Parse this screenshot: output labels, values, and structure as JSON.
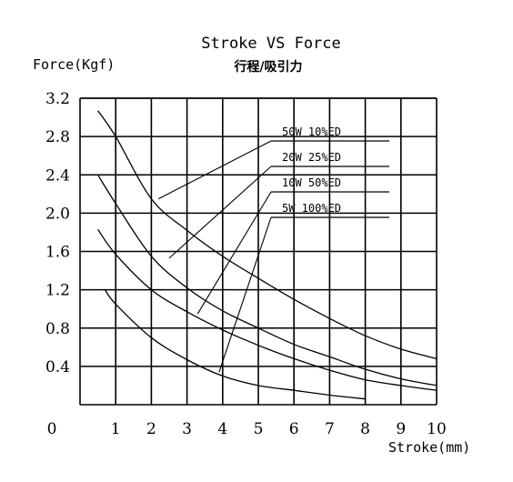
{
  "chart_data": {
    "type": "line",
    "title": "Stroke VS  Force",
    "subtitle": "行程/吸引力",
    "ylabel": "Force(Kgf)",
    "xlabel": "Stroke(mm)",
    "origin_label": "0",
    "x_ticks": [
      "1",
      "2",
      "3",
      "4",
      "5",
      "6",
      "7",
      "8",
      "9",
      "10"
    ],
    "y_ticks": [
      "0.4",
      "0.8",
      "1.2",
      "1.6",
      "2.0",
      "2.4",
      "2.8",
      "3.2"
    ],
    "xlim": [
      0,
      10
    ],
    "ylim": [
      0,
      3.2
    ],
    "grid": true,
    "series": [
      {
        "name": "50W  10%ED",
        "x": [
          0.5,
          1,
          2,
          3,
          4,
          5,
          6,
          7,
          8,
          9,
          10
        ],
        "y": [
          3.07,
          2.8,
          2.15,
          1.82,
          1.55,
          1.32,
          1.1,
          0.9,
          0.72,
          0.58,
          0.48
        ]
      },
      {
        "name": "20W  25%ED",
        "x": [
          0.5,
          1,
          2,
          3,
          4,
          5,
          6,
          7,
          8,
          9,
          10
        ],
        "y": [
          2.4,
          2.1,
          1.55,
          1.22,
          0.98,
          0.8,
          0.63,
          0.5,
          0.37,
          0.27,
          0.2
        ]
      },
      {
        "name": "10W  50%ED",
        "x": [
          0.5,
          1,
          2,
          3,
          4,
          5,
          6,
          7,
          8,
          9,
          10
        ],
        "y": [
          1.83,
          1.57,
          1.2,
          0.97,
          0.78,
          0.62,
          0.48,
          0.36,
          0.26,
          0.2,
          0.15
        ]
      },
      {
        "name": "5W   100%ED",
        "x": [
          0.7,
          1,
          2,
          3,
          4,
          5,
          6,
          7,
          8
        ],
        "y": [
          1.2,
          1.05,
          0.7,
          0.47,
          0.3,
          0.2,
          0.15,
          0.1,
          0.06
        ]
      }
    ],
    "callout_anchors": [
      {
        "x": 2.2,
        "y": 2.15
      },
      {
        "x": 2.5,
        "y": 1.53
      },
      {
        "x": 3.3,
        "y": 0.95
      },
      {
        "x": 3.9,
        "y": 0.34
      }
    ]
  }
}
